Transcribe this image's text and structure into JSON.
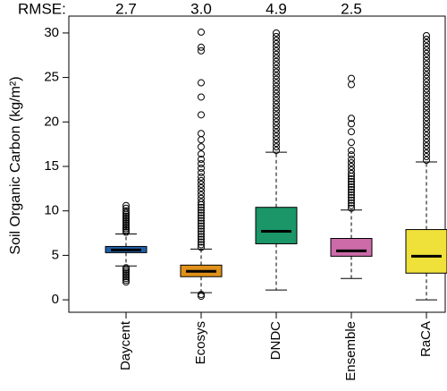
{
  "chart_data": {
    "type": "box",
    "y_label": "Soil Organic Carbon (kg/m²)",
    "rmse_label": "RMSE:",
    "rmse": [
      "2.7",
      "3.0",
      "4.9",
      "2.5"
    ],
    "ylim": [
      -1.4,
      31.9
    ],
    "yticks": [
      0,
      5,
      10,
      15,
      20,
      25,
      30
    ],
    "categories": [
      "Daycent",
      "Ecosys",
      "DNDC",
      "Ensemble",
      "RaCA"
    ],
    "series": [
      {
        "name": "Daycent",
        "color": "#1f5fa6",
        "whislo": 3.8,
        "q1": 5.3,
        "median": 5.6,
        "q3": 6.0,
        "whishi": 7.4,
        "outliers": [
          2.0,
          2.2,
          2.4,
          2.6,
          2.8,
          3.0,
          3.2,
          3.4,
          3.6,
          7.6,
          7.8,
          8.0,
          8.2,
          8.4,
          8.6,
          8.8,
          9.0,
          9.2,
          9.4,
          9.6,
          9.8,
          10.0,
          10.3,
          10.6
        ]
      },
      {
        "name": "Ecosys",
        "color": "#e0911a",
        "whislo": 0.8,
        "q1": 2.6,
        "median": 3.2,
        "q3": 3.9,
        "whishi": 5.7,
        "outliers": [
          0.4,
          0.6,
          5.9,
          6.2,
          6.5,
          6.8,
          7.1,
          7.4,
          7.7,
          8.0,
          8.3,
          8.6,
          8.9,
          9.2,
          9.5,
          9.8,
          10.1,
          10.4,
          10.7,
          11.0,
          11.4,
          11.8,
          12.2,
          12.6,
          13.0,
          13.4,
          13.8,
          14.3,
          14.8,
          15.3,
          15.8,
          16.4,
          17.2,
          18.0,
          18.7,
          20.8,
          22.8,
          24.4,
          28.0,
          28.4,
          30.1
        ]
      },
      {
        "name": "DNDC",
        "color": "#1a9669",
        "whislo": 1.1,
        "q1": 6.3,
        "median": 7.7,
        "q3": 10.4,
        "whishi": 16.6,
        "outliers": [
          16.8,
          17.2,
          17.6,
          18.0,
          18.4,
          18.8,
          19.2,
          19.6,
          20.0,
          20.4,
          20.8,
          21.2,
          21.6,
          22.0,
          22.4,
          22.8,
          23.2,
          23.6,
          24.0,
          24.4,
          24.8,
          25.2,
          25.6,
          26.0,
          26.4,
          26.8,
          27.2,
          27.6,
          28.0,
          28.4,
          28.8,
          29.2,
          29.6,
          30.0
        ]
      },
      {
        "name": "Ensemble",
        "color": "#cc6ba8",
        "whislo": 2.4,
        "q1": 4.9,
        "median": 5.5,
        "q3": 6.9,
        "whishi": 10.1,
        "outliers": [
          10.3,
          10.6,
          10.9,
          11.2,
          11.5,
          11.8,
          12.1,
          12.4,
          12.7,
          13.0,
          13.3,
          13.6,
          13.9,
          14.2,
          14.6,
          15.0,
          15.4,
          15.8,
          16.3,
          16.8,
          17.7,
          18.9,
          19.8,
          20.4,
          24.2,
          24.9
        ]
      },
      {
        "name": "RaCA",
        "color": "#efe13a",
        "whislo": 0.0,
        "q1": 3.0,
        "median": 4.9,
        "q3": 7.9,
        "whishi": 15.5,
        "outliers": [
          15.7,
          16.1,
          16.5,
          16.9,
          17.3,
          17.7,
          18.1,
          18.5,
          18.9,
          19.3,
          19.7,
          20.1,
          20.5,
          20.9,
          21.3,
          21.7,
          22.1,
          22.5,
          22.9,
          23.3,
          23.7,
          24.1,
          24.5,
          24.9,
          25.3,
          25.7,
          26.1,
          26.5,
          26.9,
          27.3,
          27.7,
          28.1,
          28.5,
          28.9,
          29.3,
          29.7
        ]
      }
    ]
  }
}
